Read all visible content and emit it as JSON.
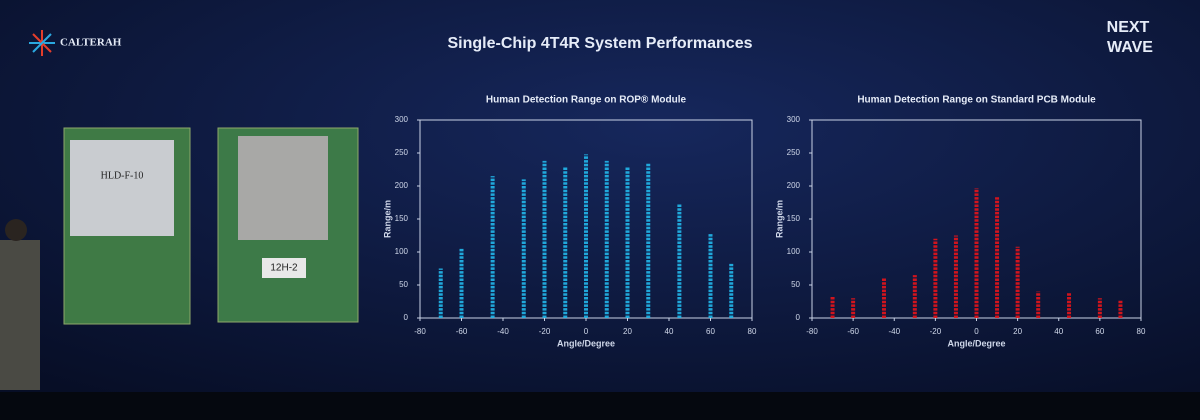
{
  "slide": {
    "title": "Single-Chip 4T4R System Performances",
    "logo": "CALTERAH",
    "event_top": "NEXT",
    "event_bottom": "WAVE",
    "board_1_label": "HLD-F-10",
    "board_2_label": "12H-2"
  },
  "chart_data": [
    {
      "type": "strip",
      "title": "Human Detection Range on ROP® Module",
      "x_label": "Angle/Degree",
      "y_label": "Range/m",
      "x": [
        -70,
        -60,
        -45,
        -30,
        -20,
        -10,
        0,
        10,
        20,
        30,
        45,
        60,
        70
      ],
      "values": [
        75,
        105,
        215,
        210,
        238,
        228,
        248,
        238,
        228,
        235,
        172,
        128,
        82
      ],
      "color": "#22b8ec",
      "xlim": [
        -80,
        80
      ],
      "xticks": [
        -80,
        -60,
        -40,
        -20,
        0,
        20,
        40,
        60,
        80
      ],
      "ylim": [
        0,
        300
      ],
      "yticks": [
        0,
        50,
        100,
        150,
        200,
        250,
        300
      ]
    },
    {
      "type": "strip",
      "title": "Human Detection Range on Standard PCB Module",
      "x_label": "Angle/Degree",
      "y_label": "Range/m",
      "x": [
        -70,
        -60,
        -45,
        -30,
        -20,
        -10,
        0,
        10,
        20,
        30,
        45,
        60,
        70
      ],
      "values": [
        32,
        30,
        60,
        65,
        120,
        125,
        197,
        183,
        108,
        40,
        38,
        30,
        28
      ],
      "color": "#e8141a",
      "xlim": [
        -80,
        80
      ],
      "xticks": [
        -80,
        -60,
        -40,
        -20,
        0,
        20,
        40,
        60,
        80
      ],
      "ylim": [
        0,
        300
      ],
      "yticks": [
        0,
        50,
        100,
        150,
        200,
        250,
        300
      ]
    }
  ]
}
